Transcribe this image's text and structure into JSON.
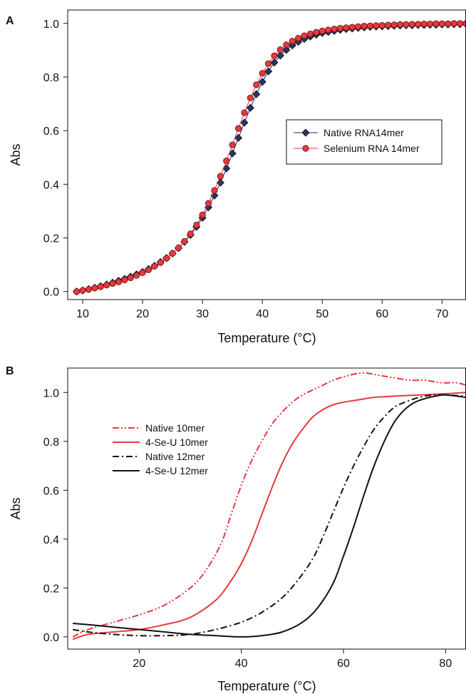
{
  "chart_data": [
    {
      "panel": "A",
      "type": "line",
      "xlabel": "Temperature (°C)",
      "ylabel": "Abs",
      "xlim": [
        7.5,
        74
      ],
      "ylim": [
        -0.03,
        1.05
      ],
      "x_ticks": [
        10,
        20,
        30,
        40,
        50,
        60,
        70
      ],
      "y_ticks": [
        0.0,
        0.2,
        0.4,
        0.6,
        0.8,
        1.0
      ],
      "x_tick_labels": [
        "10",
        "20",
        "30",
        "40",
        "50",
        "60",
        "70"
      ],
      "y_tick_labels": [
        "0.0",
        "0.2",
        "0.4",
        "0.6",
        "0.8",
        "1.0"
      ],
      "legend_placement": "center-right",
      "grid": false,
      "series": [
        {
          "name": "Native RNA14mer",
          "color": "#1f2a6b",
          "marker": "diamond",
          "x": [
            9,
            10,
            11,
            12,
            13,
            14,
            15,
            16,
            17,
            18,
            19,
            20,
            21,
            22,
            23,
            24,
            25,
            26,
            27,
            28,
            29,
            30,
            31,
            32,
            33,
            34,
            35,
            36,
            37,
            38,
            39,
            40,
            41,
            42,
            43,
            44,
            45,
            46,
            47,
            48,
            49,
            50,
            51,
            52,
            53,
            54,
            55,
            56,
            57,
            58,
            59,
            60,
            61,
            62,
            63,
            64,
            65,
            66,
            67,
            68,
            69,
            70,
            71,
            72,
            73,
            74
          ],
          "y": [
            0.0,
            0.004,
            0.009,
            0.014,
            0.02,
            0.026,
            0.033,
            0.04,
            0.047,
            0.055,
            0.064,
            0.073,
            0.084,
            0.096,
            0.11,
            0.125,
            0.142,
            0.162,
            0.185,
            0.211,
            0.241,
            0.275,
            0.314,
            0.358,
            0.406,
            0.459,
            0.515,
            0.573,
            0.63,
            0.685,
            0.736,
            0.782,
            0.821,
            0.854,
            0.88,
            0.901,
            0.918,
            0.931,
            0.942,
            0.951,
            0.958,
            0.964,
            0.968,
            0.972,
            0.976,
            0.979,
            0.981,
            0.983,
            0.985,
            0.987,
            0.988,
            0.989,
            0.99,
            0.991,
            0.992,
            0.993,
            0.993,
            0.994,
            0.994,
            0.995,
            0.995,
            0.996,
            0.996,
            0.997,
            0.997,
            0.998
          ]
        },
        {
          "name": "Selenium RNA 14mer",
          "color": "#e8383d",
          "marker": "circle",
          "x": [
            9,
            10,
            11,
            12,
            13,
            14,
            15,
            16,
            17,
            18,
            19,
            20,
            21,
            22,
            23,
            24,
            25,
            26,
            27,
            28,
            29,
            30,
            31,
            32,
            33,
            34,
            35,
            36,
            37,
            38,
            39,
            40,
            41,
            42,
            43,
            44,
            45,
            46,
            47,
            48,
            49,
            50,
            51,
            52,
            53,
            54,
            55,
            56,
            57,
            58,
            59,
            60,
            61,
            62,
            63,
            64,
            65,
            66,
            67,
            68,
            69,
            70,
            71,
            72,
            73,
            74
          ],
          "y": [
            0.0,
            0.004,
            0.008,
            0.013,
            0.018,
            0.024,
            0.03,
            0.036,
            0.043,
            0.051,
            0.06,
            0.07,
            0.081,
            0.094,
            0.108,
            0.124,
            0.142,
            0.163,
            0.187,
            0.215,
            0.248,
            0.286,
            0.329,
            0.377,
            0.43,
            0.487,
            0.547,
            0.608,
            0.667,
            0.722,
            0.771,
            0.814,
            0.85,
            0.879,
            0.902,
            0.92,
            0.934,
            0.945,
            0.954,
            0.961,
            0.967,
            0.972,
            0.976,
            0.979,
            0.982,
            0.984,
            0.986,
            0.988,
            0.99,
            0.991,
            0.992,
            0.993,
            0.994,
            0.995,
            0.996,
            0.996,
            0.997,
            0.997,
            0.998,
            0.998,
            0.999,
            0.999,
            0.999,
            1.0,
            1.0,
            1.0
          ]
        }
      ]
    },
    {
      "panel": "B",
      "type": "line",
      "xlabel": "Temperature (°C)",
      "ylabel": "Abs",
      "xlim": [
        6,
        84
      ],
      "ylim": [
        -0.05,
        1.1
      ],
      "x_ticks": [
        20,
        40,
        60,
        80
      ],
      "y_ticks": [
        0.0,
        0.2,
        0.4,
        0.6,
        0.8,
        1.0
      ],
      "x_tick_labels": [
        "20",
        "40",
        "60",
        "80"
      ],
      "y_tick_labels": [
        "0.0",
        "0.2",
        "0.4",
        "0.6",
        "0.8",
        "1.0"
      ],
      "legend_placement": "upper-left",
      "grid": false,
      "series": [
        {
          "name": "Native 10mer",
          "color": "#e8383d",
          "dash": "dash-dot-dot",
          "x": [
            7,
            10,
            15,
            20,
            25,
            30,
            33,
            36,
            38,
            40,
            42,
            44,
            46,
            48,
            50,
            52,
            55,
            58,
            61,
            64,
            67,
            70,
            73,
            76,
            79,
            82,
            84
          ],
          "y": [
            0.0,
            0.03,
            0.06,
            0.09,
            0.13,
            0.2,
            0.27,
            0.38,
            0.5,
            0.62,
            0.72,
            0.8,
            0.87,
            0.92,
            0.96,
            0.99,
            1.02,
            1.05,
            1.07,
            1.08,
            1.07,
            1.06,
            1.05,
            1.05,
            1.04,
            1.04,
            1.03
          ]
        },
        {
          "name": "4-Se-U 10mer",
          "color": "#e8383d",
          "dash": "solid",
          "x": [
            7,
            10,
            15,
            20,
            25,
            30,
            35,
            38,
            40,
            42,
            44,
            46,
            48,
            50,
            52,
            54,
            56,
            58,
            60,
            63,
            66,
            70,
            75,
            80,
            84
          ],
          "y": [
            -0.01,
            0.01,
            0.02,
            0.03,
            0.05,
            0.08,
            0.15,
            0.23,
            0.3,
            0.39,
            0.5,
            0.61,
            0.71,
            0.79,
            0.85,
            0.9,
            0.93,
            0.95,
            0.96,
            0.97,
            0.98,
            0.985,
            0.99,
            0.995,
            1.0
          ]
        },
        {
          "name": "Native 12mer",
          "color": "#111111",
          "dash": "dash-dot",
          "x": [
            7,
            10,
            15,
            20,
            25,
            30,
            35,
            40,
            44,
            48,
            51,
            54,
            56,
            58,
            60,
            62,
            64,
            66,
            68,
            70,
            72,
            74,
            76,
            78,
            80,
            84
          ],
          "y": [
            0.03,
            0.02,
            0.01,
            0.005,
            0.005,
            0.01,
            0.03,
            0.06,
            0.1,
            0.16,
            0.23,
            0.32,
            0.41,
            0.51,
            0.61,
            0.7,
            0.78,
            0.85,
            0.9,
            0.94,
            0.96,
            0.975,
            0.985,
            0.99,
            0.99,
            0.985
          ]
        },
        {
          "name": "4-Se-U 12mer",
          "color": "#111111",
          "dash": "solid",
          "x": [
            7,
            10,
            15,
            20,
            25,
            30,
            35,
            40,
            44,
            48,
            52,
            55,
            58,
            60,
            62,
            64,
            66,
            68,
            70,
            72,
            74,
            76,
            78,
            80,
            84
          ],
          "y": [
            0.055,
            0.05,
            0.04,
            0.03,
            0.02,
            0.01,
            0.005,
            0.0,
            0.005,
            0.02,
            0.06,
            0.12,
            0.22,
            0.33,
            0.45,
            0.58,
            0.7,
            0.8,
            0.88,
            0.93,
            0.96,
            0.975,
            0.985,
            0.99,
            0.98
          ]
        }
      ]
    }
  ]
}
